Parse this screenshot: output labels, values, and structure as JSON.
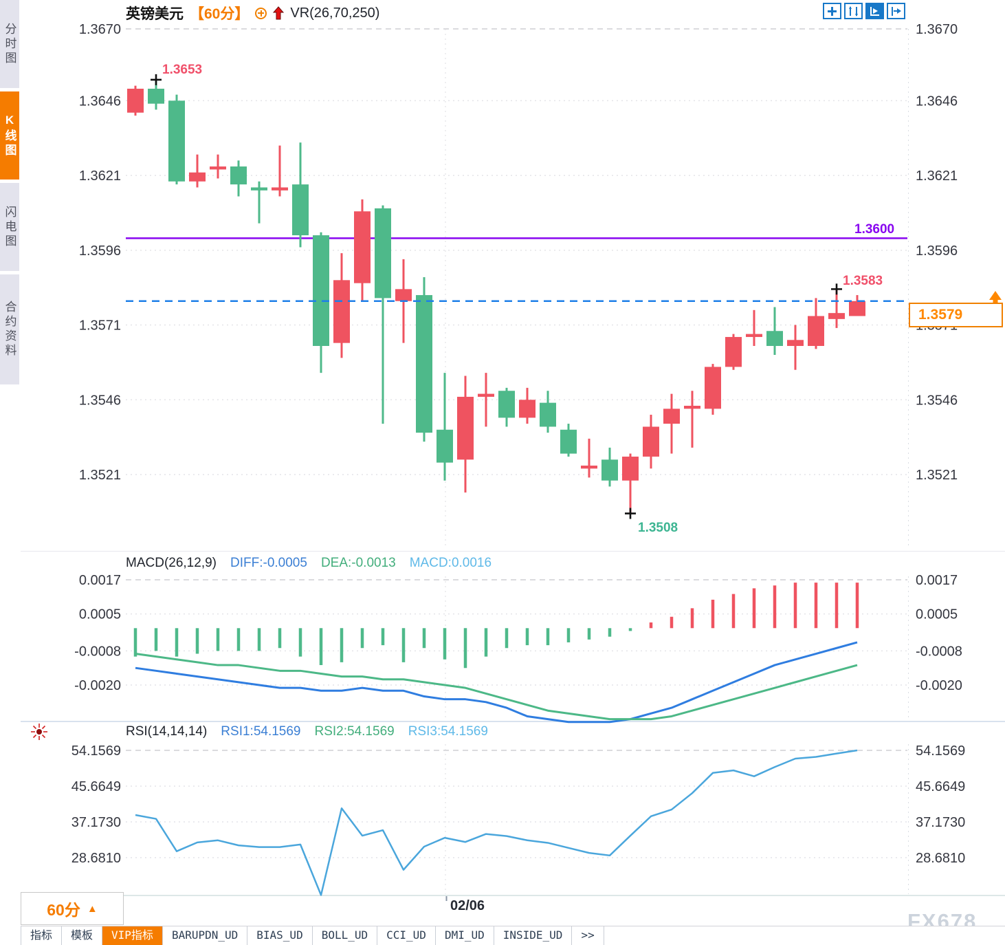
{
  "header": {
    "symbol": "英镑美元",
    "period": "【60分】",
    "overlay_indicator": "VR(26,70,250)",
    "icons": [
      "circle-plus-icon",
      "red-up-arrow-icon"
    ]
  },
  "sidebar": {
    "tabs": [
      {
        "label": "分时图",
        "active": false
      },
      {
        "label": "K线图",
        "active": true
      },
      {
        "label": "闪电图",
        "active": false
      },
      {
        "label": "合约资料",
        "active": false
      }
    ]
  },
  "toolbar": {
    "buttons": [
      {
        "name": "crosshair",
        "active": false
      },
      {
        "name": "axis-range",
        "active": false
      },
      {
        "name": "auto-scroll",
        "active": true
      },
      {
        "name": "go-to-latest",
        "active": false
      }
    ]
  },
  "annotations": {
    "swing_high": {
      "label": "1.3653",
      "price": 1.3653,
      "candle_index": 1,
      "color": "#f0506a"
    },
    "swing_low": {
      "label": "1.3508",
      "price": 1.3508,
      "candle_index": 24,
      "color": "#3db592"
    },
    "recent_high": {
      "label": "1.3583",
      "price": 1.3583,
      "candle_index": 34,
      "color": "#f0506a"
    },
    "horizontal_line": {
      "label": "1.3600",
      "price": 1.36,
      "color": "#8805f0"
    },
    "current_price": {
      "label": "1.3579",
      "price": 1.3579,
      "color": "#ff8800"
    }
  },
  "x_axis": {
    "date_label": "02/06",
    "period_button": "60分"
  },
  "watermark": "FX678",
  "bottom_tabs": {
    "items": [
      {
        "label": "指标",
        "active": false
      },
      {
        "label": "模板",
        "active": false
      },
      {
        "label": "VIP指标",
        "active": true
      },
      {
        "label": "BARUPDN_UD",
        "active": false
      },
      {
        "label": "BIAS_UD",
        "active": false
      },
      {
        "label": "BOLL_UD",
        "active": false
      },
      {
        "label": "CCI_UD",
        "active": false
      },
      {
        "label": "DMI_UD",
        "active": false
      },
      {
        "label": "INSIDE_UD",
        "active": false
      },
      {
        "label": ">>",
        "active": false
      }
    ]
  },
  "chart_data": {
    "type": "candlestick",
    "symbol": "英镑美元",
    "interval": "60分",
    "up_color": "#ef5360",
    "down_color": "#4eb98a",
    "date_tick": "02/06",
    "price_axis_ticks": [
      "1.3670",
      "1.3646",
      "1.3621",
      "1.3596",
      "1.3571",
      "1.3546",
      "1.3521"
    ],
    "candles_ohlc": [
      [
        1.3642,
        1.3651,
        1.3641,
        1.365
      ],
      [
        1.365,
        1.3653,
        1.3643,
        1.3645
      ],
      [
        1.3646,
        1.3648,
        1.3618,
        1.3619
      ],
      [
        1.3619,
        1.3628,
        1.3617,
        1.3622
      ],
      [
        1.3623,
        1.3628,
        1.362,
        1.3624
      ],
      [
        1.3624,
        1.3626,
        1.3614,
        1.3618
      ],
      [
        1.3617,
        1.3619,
        1.3605,
        1.3616
      ],
      [
        1.3616,
        1.3631,
        1.3614,
        1.3617
      ],
      [
        1.3618,
        1.3632,
        1.3597,
        1.3601
      ],
      [
        1.3601,
        1.3602,
        1.3555,
        1.3564
      ],
      [
        1.3565,
        1.3595,
        1.356,
        1.3586
      ],
      [
        1.3585,
        1.3613,
        1.3579,
        1.3609
      ],
      [
        1.361,
        1.3611,
        1.3538,
        1.358
      ],
      [
        1.3579,
        1.3593,
        1.3565,
        1.3583
      ],
      [
        1.3581,
        1.3587,
        1.3532,
        1.3535
      ],
      [
        1.3536,
        1.3555,
        1.3519,
        1.3525
      ],
      [
        1.3526,
        1.3554,
        1.3515,
        1.3547
      ],
      [
        1.3547,
        1.3555,
        1.3537,
        1.3548
      ],
      [
        1.3549,
        1.355,
        1.3537,
        1.354
      ],
      [
        1.354,
        1.355,
        1.3538,
        1.3546
      ],
      [
        1.3545,
        1.3549,
        1.3535,
        1.3537
      ],
      [
        1.3536,
        1.3538,
        1.3527,
        1.3528
      ],
      [
        1.3523,
        1.3533,
        1.352,
        1.3524
      ],
      [
        1.3526,
        1.353,
        1.3517,
        1.3519
      ],
      [
        1.3519,
        1.3528,
        1.3508,
        1.3527
      ],
      [
        1.3527,
        1.3541,
        1.3523,
        1.3537
      ],
      [
        1.3538,
        1.3548,
        1.3528,
        1.3543
      ],
      [
        1.3543,
        1.3549,
        1.353,
        1.3544
      ],
      [
        1.3543,
        1.3558,
        1.3541,
        1.3557
      ],
      [
        1.3557,
        1.3568,
        1.3556,
        1.3567
      ],
      [
        1.3567,
        1.3576,
        1.3564,
        1.3568
      ],
      [
        1.3569,
        1.3577,
        1.3561,
        1.3564
      ],
      [
        1.3564,
        1.3571,
        1.3556,
        1.3566
      ],
      [
        1.3564,
        1.358,
        1.3563,
        1.3574
      ],
      [
        1.3573,
        1.3583,
        1.357,
        1.3575
      ],
      [
        1.3574,
        1.3581,
        1.3574,
        1.3579
      ]
    ],
    "panels": [
      {
        "name": "MACD",
        "labels": {
          "title": "MACD(26,12,9)",
          "diff": "DIFF:-0.0005",
          "dea": "DEA:-0.0013",
          "macd": "MACD:0.0016"
        },
        "axis_ticks": [
          "0.0017",
          "0.0005",
          "-0.0008",
          "-0.0020"
        ],
        "histogram": [
          -0.001,
          -0.0008,
          -0.001,
          -0.0009,
          -0.0008,
          -0.0008,
          -0.0008,
          -0.0007,
          -0.001,
          -0.0013,
          -0.0012,
          -0.0007,
          -0.0006,
          -0.0012,
          -0.0007,
          -0.0011,
          -0.0014,
          -0.001,
          -0.0007,
          -0.0006,
          -0.0006,
          -0.0005,
          -0.0004,
          -0.0003,
          -0.0001,
          0.0002,
          0.0004,
          0.0007,
          0.001,
          0.0012,
          0.0014,
          0.0015,
          0.0016,
          0.0016,
          0.0016,
          0.0016
        ],
        "diff_line": [
          -0.0014,
          -0.0015,
          -0.0016,
          -0.0017,
          -0.0018,
          -0.0019,
          -0.002,
          -0.0021,
          -0.0021,
          -0.0022,
          -0.0022,
          -0.0021,
          -0.0022,
          -0.0022,
          -0.0024,
          -0.0025,
          -0.0025,
          -0.0026,
          -0.0028,
          -0.0031,
          -0.0032,
          -0.0033,
          -0.0033,
          -0.0033,
          -0.0032,
          -0.003,
          -0.0028,
          -0.0025,
          -0.0022,
          -0.0019,
          -0.0016,
          -0.0013,
          -0.0011,
          -0.0009,
          -0.0007,
          -0.0005
        ],
        "dea_line": [
          -0.0009,
          -0.001,
          -0.0011,
          -0.0012,
          -0.0013,
          -0.0013,
          -0.0014,
          -0.0015,
          -0.0015,
          -0.0016,
          -0.0017,
          -0.0017,
          -0.0018,
          -0.0018,
          -0.0019,
          -0.002,
          -0.0021,
          -0.0023,
          -0.0025,
          -0.0027,
          -0.0029,
          -0.003,
          -0.0031,
          -0.0032,
          -0.0032,
          -0.0032,
          -0.0031,
          -0.0029,
          -0.0027,
          -0.0025,
          -0.0023,
          -0.0021,
          -0.0019,
          -0.0017,
          -0.0015,
          -0.0013
        ]
      },
      {
        "name": "RSI",
        "labels": {
          "title": "RSI(14,14,14)",
          "rsi1": "RSI1:54.1569",
          "rsi2": "RSI2:54.1569",
          "rsi3": "RSI3:54.1569"
        },
        "axis_ticks": [
          "54.1569",
          "45.6649",
          "37.1730",
          "28.6810"
        ],
        "rsi_line": [
          38.8,
          37.9,
          30.2,
          32.3,
          32.8,
          31.6,
          31.2,
          31.2,
          31.8,
          19.8,
          40.4,
          33.9,
          35.2,
          25.8,
          31.3,
          33.4,
          32.4,
          34.3,
          33.8,
          32.8,
          32.2,
          31.0,
          29.8,
          29.2,
          33.9,
          38.5,
          40.1,
          44.0,
          48.8,
          49.4,
          48.0,
          50.2,
          52.2,
          52.6,
          53.4,
          54.1569
        ]
      }
    ]
  }
}
